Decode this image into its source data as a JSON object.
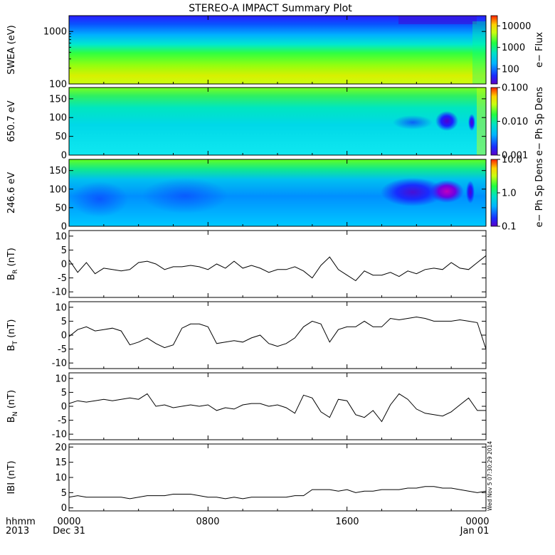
{
  "title": "STEREO-A IMPACT Summary Plot",
  "stamp": "Wed Nov  5 07:30:29 2014",
  "x_axis": {
    "corner_top": "hhmm",
    "corner_bottom": "2013",
    "ticks": [
      "0000",
      "0800",
      "1600",
      "0000"
    ],
    "tick_hours": [
      0,
      8,
      16,
      24
    ],
    "date_labels": [
      "Dec 31",
      "Jan 01"
    ],
    "range_hours": [
      0,
      24
    ]
  },
  "chart_data": [
    {
      "type": "heatmap",
      "ylabel": "SWEA (eV)",
      "yscale": "log",
      "ylim": [
        100,
        2000
      ],
      "yticks": [
        "1000",
        "100"
      ],
      "ytick_values": [
        1000,
        100
      ],
      "colorbar": {
        "label": "e− Flux",
        "scale": "log",
        "ticks": [
          "10000",
          "1000",
          "100"
        ],
        "tick_values": [
          10000,
          1000,
          100
        ],
        "range": [
          20,
          30000
        ]
      }
    },
    {
      "type": "heatmap",
      "ylabel": "650.7  eV",
      "ylim": [
        0,
        180
      ],
      "yticks": [
        "150",
        "100",
        "50",
        "0"
      ],
      "ytick_values": [
        150,
        100,
        50,
        0
      ],
      "colorbar": {
        "label": "e− Ph Sp Dens",
        "scale": "log",
        "ticks": [
          "0.100",
          "0.010",
          "0.001"
        ],
        "tick_values": [
          0.1,
          0.01,
          0.001
        ],
        "range": [
          0.001,
          0.1
        ]
      }
    },
    {
      "type": "heatmap",
      "ylabel": "246.6  eV",
      "ylim": [
        0,
        180
      ],
      "yticks": [
        "150",
        "100",
        "50",
        "0"
      ],
      "ytick_values": [
        150,
        100,
        50,
        0
      ],
      "colorbar": {
        "label": "e− Ph Sp Dens",
        "scale": "log",
        "ticks": [
          "10.0",
          "1.0",
          "0.1"
        ],
        "tick_values": [
          10,
          1,
          0.1
        ],
        "range": [
          0.1,
          10
        ]
      }
    },
    {
      "type": "line",
      "ylabel_main": "B",
      "ylabel_sub": "R",
      "ylabel_unit": " (nT)",
      "ylim": [
        -12,
        12
      ],
      "yticks": [
        "10",
        "5",
        "0",
        "-5",
        "-10"
      ],
      "ytick_values": [
        10,
        5,
        0,
        -5,
        -10
      ],
      "x_hours": [
        0,
        0.5,
        1,
        1.5,
        2,
        2.5,
        3,
        3.5,
        4,
        4.5,
        5,
        5.5,
        6,
        6.5,
        7,
        7.5,
        8,
        8.5,
        9,
        9.5,
        10,
        10.5,
        11,
        11.5,
        12,
        12.5,
        13,
        13.5,
        14,
        14.5,
        15,
        15.5,
        16,
        16.5,
        17,
        17.5,
        18,
        18.5,
        19,
        19.5,
        20,
        20.5,
        21,
        21.5,
        22,
        22.5,
        23,
        23.5,
        24
      ],
      "values": [
        1.5,
        -3,
        0.5,
        -3.5,
        -1.5,
        -2,
        -2.5,
        -2,
        0.5,
        1,
        0,
        -2,
        -1,
        -1,
        -0.5,
        -1,
        -2,
        0,
        -1.5,
        1,
        -1.5,
        -0.5,
        -1.5,
        -3,
        -2,
        -2,
        -1,
        -2.5,
        -5,
        -0.5,
        2.5,
        -2,
        -4,
        -6,
        -2.5,
        -4,
        -4,
        -3,
        -4.5,
        -2.5,
        -3.5,
        -2,
        -1.5,
        -2,
        0.5,
        -1.5,
        -2,
        0.5,
        3
      ]
    },
    {
      "type": "line",
      "ylabel_main": "B",
      "ylabel_sub": "T",
      "ylabel_unit": " (nT)",
      "ylim": [
        -12,
        12
      ],
      "yticks": [
        "10",
        "5",
        "0",
        "-5",
        "-10"
      ],
      "ytick_values": [
        10,
        5,
        0,
        -5,
        -10
      ],
      "x_hours": [
        0,
        0.5,
        1,
        1.5,
        2,
        2.5,
        3,
        3.5,
        4,
        4.5,
        5,
        5.5,
        6,
        6.5,
        7,
        7.5,
        8,
        8.5,
        9,
        9.5,
        10,
        10.5,
        11,
        11.5,
        12,
        12.5,
        13,
        13.5,
        14,
        14.5,
        15,
        15.5,
        16,
        16.5,
        17,
        17.5,
        18,
        18.5,
        19,
        19.5,
        20,
        20.5,
        21,
        21.5,
        22,
        22.5,
        23,
        23.5,
        24
      ],
      "values": [
        -0.5,
        2,
        3,
        1.5,
        2,
        2.5,
        1.5,
        -3.5,
        -2.5,
        -1,
        -3,
        -4.5,
        -3.5,
        2.5,
        4,
        4,
        3,
        -3,
        -2.5,
        -2,
        -2.5,
        -1,
        0,
        -3,
        -4,
        -3,
        -1,
        3,
        5,
        4,
        -2.5,
        2,
        3,
        3,
        5,
        3,
        3,
        6,
        5.5,
        6,
        6.5,
        6,
        5,
        5,
        5,
        5.5,
        5,
        4.5,
        -5
      ]
    },
    {
      "type": "line",
      "ylabel_main": "B",
      "ylabel_sub": "N",
      "ylabel_unit": " (nT)",
      "ylim": [
        -12,
        12
      ],
      "yticks": [
        "10",
        "5",
        "0",
        "-5",
        "-10"
      ],
      "ytick_values": [
        10,
        5,
        0,
        -5,
        -10
      ],
      "x_hours": [
        0,
        0.5,
        1,
        1.5,
        2,
        2.5,
        3,
        3.5,
        4,
        4.5,
        5,
        5.5,
        6,
        6.5,
        7,
        7.5,
        8,
        8.5,
        9,
        9.5,
        10,
        10.5,
        11,
        11.5,
        12,
        12.5,
        13,
        13.5,
        14,
        14.5,
        15,
        15.5,
        16,
        16.5,
        17,
        17.5,
        18,
        18.5,
        19,
        19.5,
        20,
        20.5,
        21,
        21.5,
        22,
        22.5,
        23,
        23.5,
        24
      ],
      "values": [
        1,
        2,
        1.5,
        2,
        2.5,
        2,
        2.5,
        3,
        2.5,
        4.5,
        0,
        0.5,
        -0.5,
        0,
        0.5,
        0,
        0.5,
        -1.5,
        -0.5,
        -1,
        0.5,
        1,
        1,
        0,
        0.5,
        -0.5,
        -2.5,
        4,
        3,
        -2,
        -4,
        2.5,
        2,
        -3,
        -4,
        -1.5,
        -5.5,
        0.5,
        4.5,
        2.5,
        -1,
        -2.5,
        -3,
        -3.5,
        -2,
        0.5,
        3,
        -1.5,
        -1.5
      ]
    },
    {
      "type": "line",
      "ylabel_main": "IBI",
      "ylabel_sub": "",
      "ylabel_unit": " (nT)",
      "ylim": [
        -1,
        21
      ],
      "yticks": [
        "20",
        "15",
        "10",
        "5",
        "0"
      ],
      "ytick_values": [
        20,
        15,
        10,
        5,
        0
      ],
      "x_hours": [
        0,
        0.5,
        1,
        1.5,
        2,
        2.5,
        3,
        3.5,
        4,
        4.5,
        5,
        5.5,
        6,
        6.5,
        7,
        7.5,
        8,
        8.5,
        9,
        9.5,
        10,
        10.5,
        11,
        11.5,
        12,
        12.5,
        13,
        13.5,
        14,
        14.5,
        15,
        15.5,
        16,
        16.5,
        17,
        17.5,
        18,
        18.5,
        19,
        19.5,
        20,
        20.5,
        21,
        21.5,
        22,
        22.5,
        23,
        23.5,
        24
      ],
      "values": [
        3.5,
        4,
        3.5,
        3.5,
        3.5,
        3.5,
        3.5,
        3,
        3.5,
        4,
        4,
        4,
        4.5,
        4.5,
        4.5,
        4,
        3.5,
        3.5,
        3,
        3.5,
        3,
        3.5,
        3.5,
        3.5,
        3.5,
        3.5,
        4,
        4,
        6,
        6,
        6,
        5.5,
        6,
        5,
        5.5,
        5.5,
        6,
        6,
        6,
        6.5,
        6.5,
        7,
        7,
        6.5,
        6.5,
        6,
        5.5,
        5,
        5.5
      ]
    }
  ]
}
